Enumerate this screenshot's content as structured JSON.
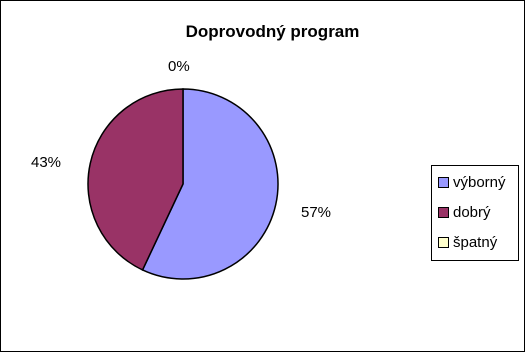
{
  "chart_data": {
    "type": "pie",
    "title": "Doprovodný program",
    "categories": [
      "výborný",
      "dobrý",
      "špatný"
    ],
    "values": [
      57,
      43,
      0
    ],
    "data_labels": [
      "57%",
      "43%",
      "0%"
    ],
    "colors": [
      "#9999ff",
      "#993366",
      "#ffffcc"
    ],
    "legend_position": "right",
    "legend": [
      "výborný",
      "dobrý",
      "špatný"
    ]
  }
}
